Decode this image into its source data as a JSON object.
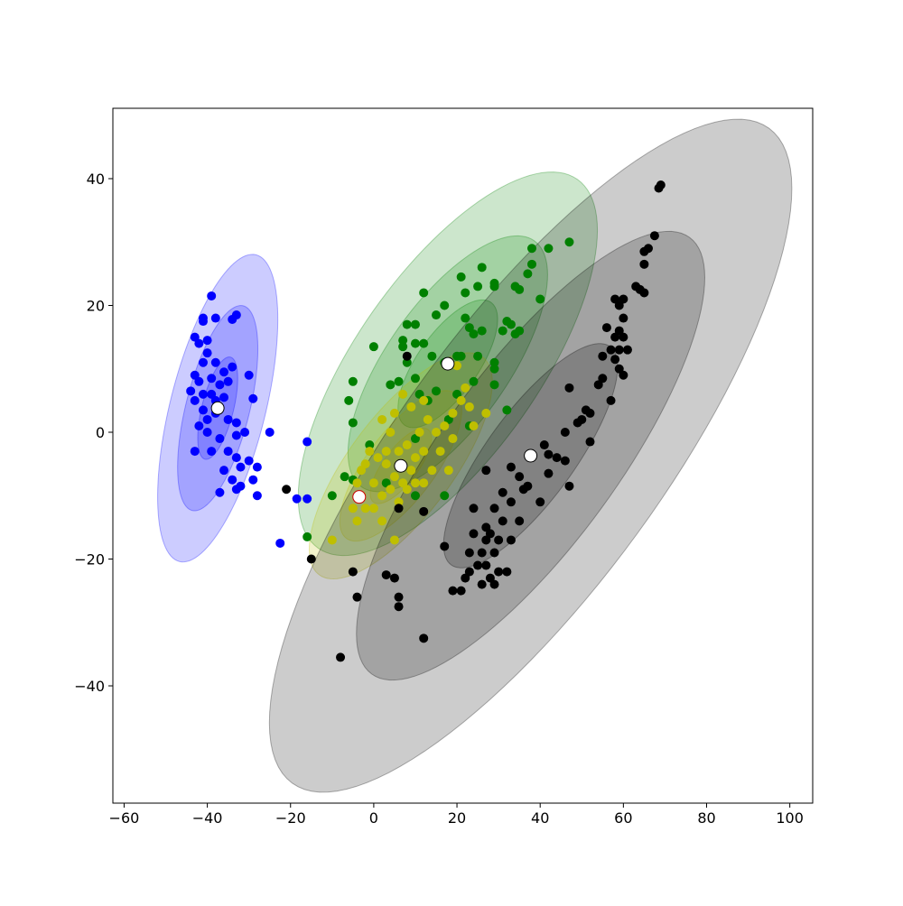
{
  "chart_data": {
    "type": "scatter",
    "xlim": [
      -62.7,
      105.5
    ],
    "ylim": [
      -58.5,
      51.1
    ],
    "xticks": [
      {
        "value": -60,
        "label": "−60"
      },
      {
        "value": -40,
        "label": "−40"
      },
      {
        "value": -20,
        "label": "−20"
      },
      0,
      20,
      40,
      60,
      80,
      100
    ],
    "yticks": [
      {
        "value": -40,
        "label": "−40"
      },
      {
        "value": -20,
        "label": "−20"
      },
      0,
      20,
      40
    ],
    "ellipse_alpha": 0.2,
    "ellipses": [
      {
        "color": "#0000ff",
        "cx": -37.5,
        "cy": 3.8,
        "width": 52,
        "height": 22,
        "angle": 66.6
      },
      {
        "color": "#0000ff",
        "cx": -37.5,
        "cy": 3.8,
        "width": 34.7,
        "height": 14.7,
        "angle": 66.6
      },
      {
        "color": "#0000ff",
        "cx": -37.5,
        "cy": 3.8,
        "width": 17.3,
        "height": 7.3,
        "angle": 66.6
      },
      {
        "color": "#008000",
        "cx": 17.8,
        "cy": 10.8,
        "width": 86.8,
        "height": 36,
        "angle": 38
      },
      {
        "color": "#008000",
        "cx": 17.8,
        "cy": 10.8,
        "width": 57.9,
        "height": 24,
        "angle": 38
      },
      {
        "color": "#008000",
        "cx": 17.8,
        "cy": 10.8,
        "width": 28.9,
        "height": 12,
        "angle": 38
      },
      {
        "color": "#bfbf00",
        "cx": 6.5,
        "cy": -5.3,
        "width": 53,
        "height": 20,
        "angle": 37
      },
      {
        "color": "#bfbf00",
        "cx": 6.5,
        "cy": -5.3,
        "width": 35.3,
        "height": 13.3,
        "angle": 37
      },
      {
        "color": "#bfbf00",
        "cx": 6.5,
        "cy": -5.3,
        "width": 17.7,
        "height": 6.7,
        "angle": 37
      },
      {
        "color": "#000000",
        "cx": 37.7,
        "cy": -3.7,
        "width": 156,
        "height": 52,
        "angle": 39
      },
      {
        "color": "#000000",
        "cx": 37.7,
        "cy": -3.7,
        "width": 104,
        "height": 34.7,
        "angle": 39
      },
      {
        "color": "#000000",
        "cx": 37.7,
        "cy": -3.7,
        "width": 52,
        "height": 17.3,
        "angle": 39
      }
    ],
    "series": [
      {
        "color": "#0000ff",
        "x": [
          -39,
          -34,
          -33,
          -38,
          -41,
          -41,
          -40,
          -43,
          -42,
          -40,
          -41,
          -38,
          -36,
          -34,
          -30,
          -43,
          -42,
          -39,
          -37,
          -35,
          -44,
          -41,
          -39,
          -38,
          -36,
          -43,
          -41,
          -40,
          -38,
          -35,
          -33,
          -29,
          -42,
          -40,
          -37,
          -33,
          -31,
          -25,
          -43,
          -39,
          -35,
          -33,
          -30,
          -36,
          -32,
          -28,
          -37,
          -34,
          -32,
          -29,
          -28,
          -33,
          -22.5,
          -16,
          -18.5,
          -16
        ],
        "y": [
          21.5,
          17.8,
          18.5,
          18,
          17.5,
          18,
          14.5,
          15,
          14,
          12.5,
          11,
          11,
          9.5,
          10.3,
          9,
          9,
          8,
          8.5,
          7.5,
          8,
          6.5,
          6,
          6,
          5,
          5.5,
          5,
          3.5,
          2,
          3,
          2,
          1.5,
          5.3,
          1,
          0,
          -1,
          -0.5,
          0,
          0,
          -3,
          -3,
          -3,
          -4,
          -4.5,
          -6,
          -5.5,
          -5.5,
          -9.5,
          -7.5,
          -8.5,
          -7.5,
          -10,
          -9,
          -17.5,
          -10.5,
          -10.5,
          -1.5
        ]
      },
      {
        "color": "#008000",
        "x": [
          47,
          42,
          38,
          38,
          37,
          34,
          35,
          29,
          29,
          26,
          25,
          21,
          22,
          12,
          17,
          15,
          8,
          10,
          7,
          7,
          10,
          12,
          0,
          22,
          23,
          26,
          24,
          32,
          33,
          31,
          34,
          35,
          40,
          14,
          17,
          20,
          21,
          25,
          29,
          29,
          8,
          10,
          6,
          4,
          -5,
          -6,
          -5,
          11,
          15,
          20,
          24,
          29,
          32,
          13,
          18,
          23,
          -5,
          -7,
          -10,
          -16,
          17,
          10,
          3,
          -1,
          10
        ],
        "y": [
          30,
          29,
          29,
          26.5,
          25,
          23,
          22.5,
          23,
          23.5,
          26,
          23,
          24.5,
          22,
          22,
          20,
          18.5,
          17,
          17,
          14.5,
          13.5,
          14,
          14,
          13.5,
          18,
          16.5,
          16,
          15.5,
          17.5,
          17,
          16,
          15.5,
          16,
          21,
          12,
          11,
          12,
          12,
          12,
          11,
          10,
          11,
          8.5,
          8,
          7.5,
          8,
          5,
          1.5,
          6,
          6.5,
          6,
          8,
          7.5,
          3.5,
          5,
          2,
          1,
          -7.5,
          -7,
          -10,
          -16.5,
          -10,
          -10,
          -8,
          -2,
          -1
        ]
      },
      {
        "color": "#bfbf00",
        "x": [
          -3,
          -2,
          -4,
          0,
          2,
          4,
          5,
          7,
          9,
          3,
          1,
          -1,
          -3,
          6,
          8,
          10,
          12,
          11,
          13,
          15,
          17,
          19,
          21,
          23,
          19,
          16,
          14,
          18,
          20,
          22,
          24,
          27,
          12,
          7,
          9,
          4,
          2,
          5,
          -2,
          0,
          -4,
          -5,
          -10,
          5,
          2,
          6,
          8,
          10,
          3,
          12
        ],
        "y": [
          -10,
          -12,
          -14,
          -12,
          -10,
          -9,
          -7,
          -8,
          -6,
          -5,
          -4,
          -3,
          -6,
          -3,
          -2,
          -4,
          -3,
          0,
          2,
          0,
          1,
          3,
          5,
          4,
          -1,
          -3,
          -6,
          -6,
          10.5,
          7,
          1,
          3,
          5,
          6,
          4,
          0,
          2,
          3,
          -5,
          -8,
          -8,
          -12,
          -17,
          -17,
          -14,
          -11,
          -9,
          -8,
          -3,
          -8
        ]
      },
      {
        "color": "#000000",
        "x": [
          69,
          68.5,
          67.5,
          66,
          65,
          65,
          63,
          64,
          65,
          58,
          60,
          59,
          60,
          56,
          59,
          58,
          60,
          57,
          59,
          61,
          55,
          58,
          59,
          55,
          60,
          54,
          47,
          57,
          51,
          52,
          49,
          50,
          46,
          52,
          41,
          42,
          44,
          46,
          38,
          33,
          27,
          35,
          42,
          47,
          36,
          37,
          31,
          33,
          40,
          29,
          24,
          35,
          31,
          27,
          28,
          24,
          27,
          30,
          33,
          26,
          23,
          29,
          25,
          27,
          23,
          30,
          32,
          22,
          28,
          26,
          29,
          19,
          21,
          17,
          12,
          3,
          5,
          6,
          6,
          -5,
          -4,
          12,
          -8,
          -15,
          -21,
          8,
          6
        ],
        "y": [
          39,
          38.5,
          31,
          29,
          28.5,
          26.5,
          23,
          22.5,
          22,
          21,
          21,
          20,
          18,
          16.5,
          16,
          15,
          15,
          13,
          13,
          13,
          12,
          11.5,
          10,
          8.5,
          9,
          7.5,
          7,
          5,
          3.5,
          3,
          1.5,
          2,
          0,
          -1.5,
          -2,
          -3.5,
          -4,
          -4.5,
          -4,
          -5.5,
          -6,
          -7,
          -6.5,
          -8.5,
          -9,
          -8.5,
          -9.5,
          -11,
          -11,
          -12,
          -12,
          -14,
          -14,
          -15,
          -16,
          -16,
          -17,
          -17,
          -17,
          -19,
          -19,
          -19,
          -21,
          -21,
          -22,
          -22,
          -22,
          -23,
          -23,
          -24,
          -24,
          -25,
          -25,
          -18,
          -12.5,
          -22.5,
          -23,
          -26,
          -27.5,
          -22,
          -26,
          -32.5,
          -35.5,
          -20,
          -9,
          12,
          -12
        ]
      }
    ],
    "centers": [
      {
        "x": -37.5,
        "y": 3.8,
        "edgecolor": "#000000"
      },
      {
        "x": 17.8,
        "y": 10.8,
        "edgecolor": "#000000"
      },
      {
        "x": 6.5,
        "y": -5.3,
        "edgecolor": "#000000"
      },
      {
        "x": 37.7,
        "y": -3.7,
        "edgecolor": "#000000"
      },
      {
        "x": -3.5,
        "y": -10.2,
        "edgecolor": "#cc0000"
      }
    ]
  }
}
